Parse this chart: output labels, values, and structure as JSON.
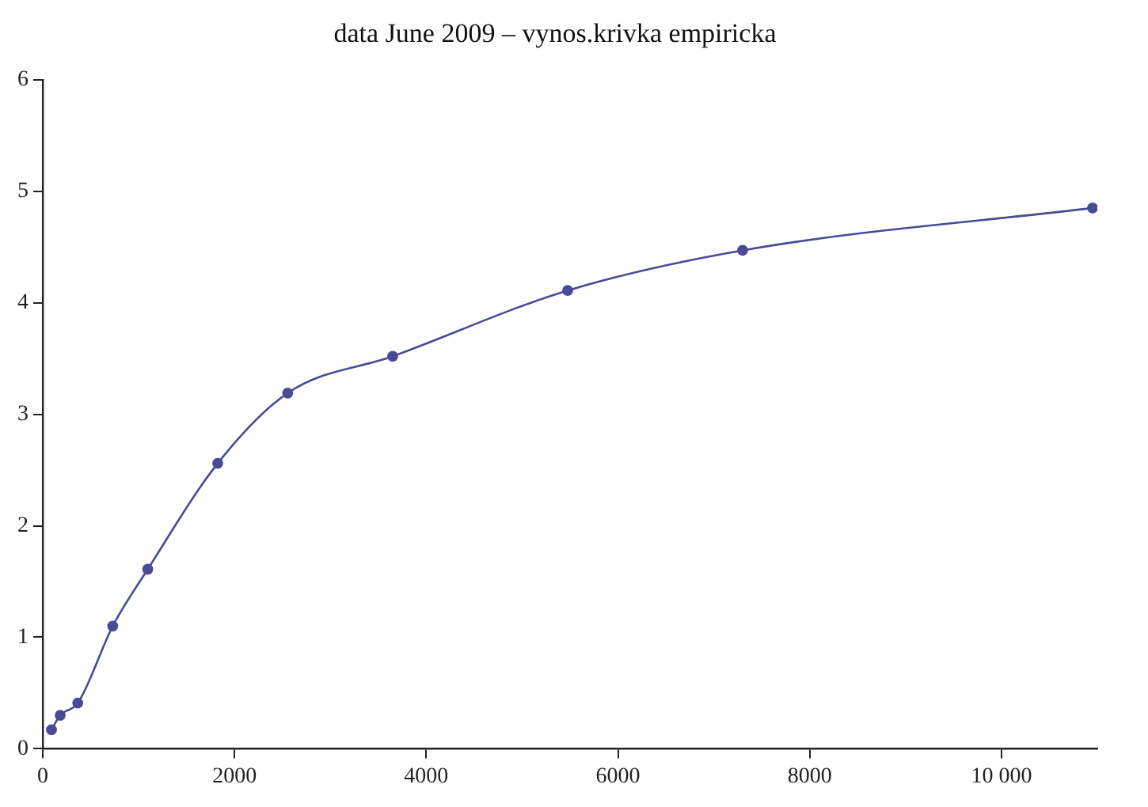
{
  "chart_data": {
    "type": "line",
    "title": "data June 2009 – vynos.krivka empiricka",
    "x": [
      91,
      182,
      365,
      730,
      1095,
      1825,
      2555,
      3650,
      5475,
      7300,
      10950
    ],
    "series": [
      {
        "color": "#4a4a96",
        "values": [
          0.17,
          0.3,
          0.41,
          1.1,
          1.61,
          2.56,
          3.19,
          3.52,
          4.11,
          4.47,
          4.85
        ]
      }
    ],
    "xlim": [
      0,
      11000
    ],
    "xticks": [
      0,
      2000,
      4000,
      6000,
      8000,
      {
        "value": 10000,
        "label": "10 000"
      }
    ],
    "ylim": [
      0,
      6
    ],
    "yticks": [
      0,
      1,
      2,
      3,
      4,
      5,
      6
    ],
    "grid": false,
    "legend": false,
    "marker": "circle",
    "line_style": "solid"
  }
}
